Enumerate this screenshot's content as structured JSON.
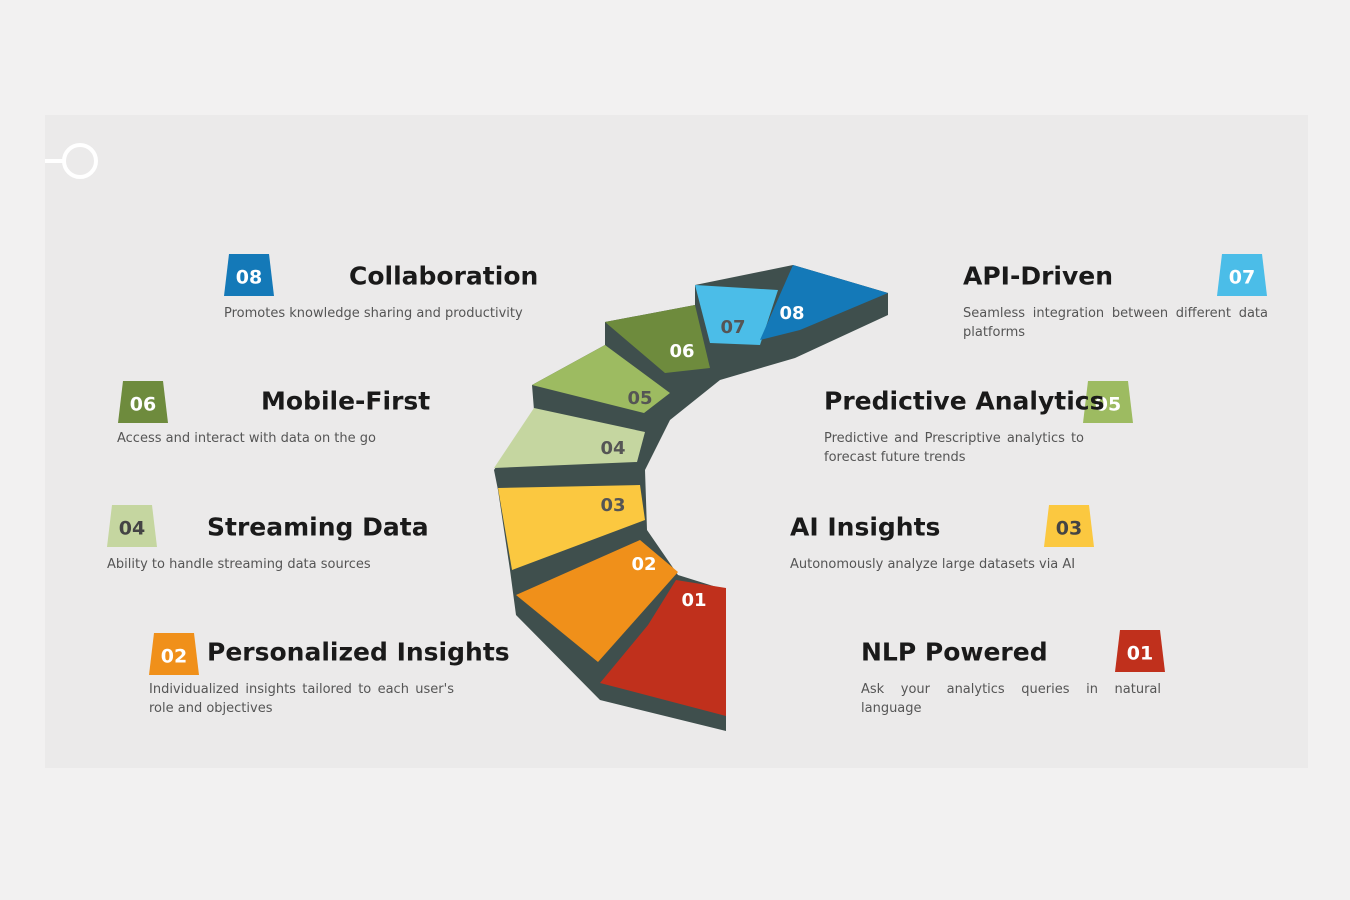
{
  "items": [
    {
      "number": "01",
      "title": "NLP Powered",
      "description": "Ask your analytics queries in natural language",
      "color": "#c0301c"
    },
    {
      "number": "02",
      "title": "Personalized Insights",
      "description": "Individualized insights tailored to each user's role and objectives",
      "color": "#f0901a"
    },
    {
      "number": "03",
      "title": "AI Insights",
      "description": "Autonomously analyze large datasets via AI",
      "color": "#fbc840"
    },
    {
      "number": "04",
      "title": "Streaming Data",
      "description": "Ability to handle streaming data sources",
      "color": "#c5d6a0"
    },
    {
      "number": "05",
      "title": "Predictive Analytics",
      "description": "Predictive and Prescriptive analytics to forecast future trends",
      "color": "#9dbb61"
    },
    {
      "number": "06",
      "title": "Mobile-First",
      "description": "Access and interact with data on the go",
      "color": "#6e8b3d"
    },
    {
      "number": "07",
      "title": "API-Driven",
      "description": "Seamless integration between different data platforms",
      "color": "#4bbde8"
    },
    {
      "number": "08",
      "title": "Collaboration",
      "description": "Promotes knowledge sharing and productivity",
      "color": "#1479b8"
    }
  ]
}
